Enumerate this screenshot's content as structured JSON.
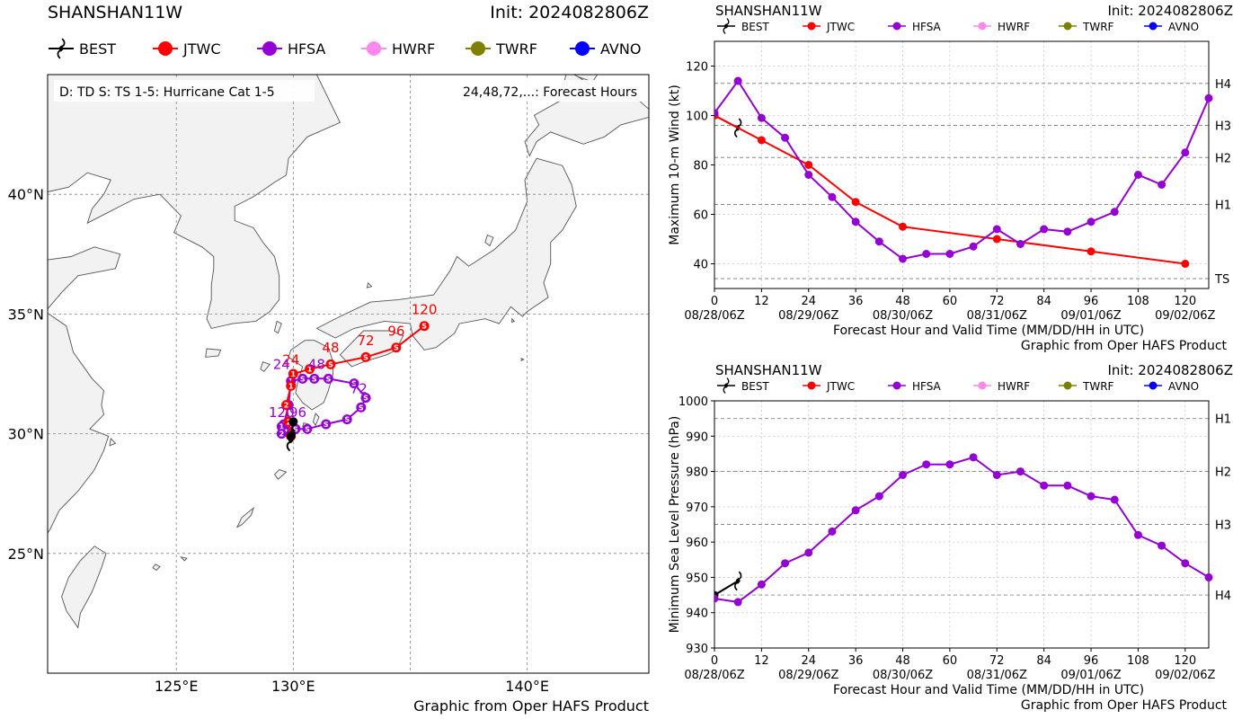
{
  "storm": "SHANSHAN11W",
  "init": "Init: 2024082806Z",
  "credit": "Graphic from Oper HAFS Product",
  "legend": [
    {
      "name": "BEST",
      "color": "#000000",
      "icon": "typhoon-icon"
    },
    {
      "name": "JTWC",
      "color": "#ff0000",
      "icon": "dot-marker"
    },
    {
      "name": "HFSA",
      "color": "#9400d3",
      "icon": "dot-marker"
    },
    {
      "name": "HWRF",
      "color": "#ff88ee",
      "icon": "dot-marker"
    },
    {
      "name": "TWRF",
      "color": "#808000",
      "icon": "dot-marker"
    },
    {
      "name": "AVNO",
      "color": "#0000ff",
      "icon": "dot-marker"
    }
  ],
  "map": {
    "note_left": "D: TD  S: TS  1-5: Hurricane Cat 1-5",
    "note_right": "24,48,72,...: Forecast Hours",
    "lat_labels": [
      "25°N",
      "30°N",
      "35°N",
      "40°N"
    ],
    "lon_labels": [
      "125°E",
      "130°E",
      "140°E"
    ],
    "lat_ticks": [
      25,
      30,
      35,
      40
    ],
    "lon_ticks": [
      125,
      130,
      135,
      140
    ],
    "lat_range": [
      20,
      45
    ],
    "lon_range": [
      119.5,
      145.2
    ],
    "best_track": [
      [
        29.9,
        129.9
      ],
      [
        30.5,
        130.0
      ]
    ],
    "jtwc_track": [
      {
        "lat": 29.9,
        "lon": 129.9,
        "sym": "3"
      },
      {
        "lat": 30.5,
        "lon": 129.8,
        "sym": "2"
      },
      {
        "lat": 31.2,
        "lon": 129.7,
        "sym": "2"
      },
      {
        "lat": 32.0,
        "lon": 129.9,
        "sym": "1"
      },
      {
        "lat": 32.5,
        "lon": 130.0,
        "sym": "1"
      },
      {
        "lat": 32.7,
        "lon": 130.7,
        "sym": "1"
      },
      {
        "lat": 32.9,
        "lon": 131.6,
        "sym": "S"
      },
      {
        "lat": 33.2,
        "lon": 133.1,
        "sym": "S"
      },
      {
        "lat": 33.6,
        "lon": 134.4,
        "sym": "S"
      },
      {
        "lat": 34.5,
        "lon": 135.6,
        "sym": "S"
      }
    ],
    "jtwc_hour_labels": [
      {
        "text": "24",
        "lat": 32.9,
        "lon": 129.9
      },
      {
        "text": "48",
        "lat": 33.4,
        "lon": 131.6
      },
      {
        "text": "72",
        "lat": 33.7,
        "lon": 133.1
      },
      {
        "text": "96",
        "lat": 34.1,
        "lon": 134.4
      },
      {
        "text": "120",
        "lat": 35.0,
        "lon": 135.6
      }
    ],
    "hfsa_track": [
      {
        "lat": 30.0,
        "lon": 129.9,
        "sym": "3"
      },
      {
        "lat": 30.4,
        "lon": 129.6,
        "sym": "3"
      },
      {
        "lat": 31.2,
        "lon": 129.8,
        "sym": "2"
      },
      {
        "lat": 32.2,
        "lon": 129.9,
        "sym": "1"
      },
      {
        "lat": 32.3,
        "lon": 130.4,
        "sym": "S"
      },
      {
        "lat": 32.3,
        "lon": 130.9,
        "sym": "S"
      },
      {
        "lat": 32.3,
        "lon": 131.5,
        "sym": "S"
      },
      {
        "lat": 32.1,
        "lon": 132.6,
        "sym": "S"
      },
      {
        "lat": 31.5,
        "lon": 133.1,
        "sym": "S"
      },
      {
        "lat": 31.1,
        "lon": 132.9,
        "sym": "S"
      },
      {
        "lat": 30.6,
        "lon": 132.3,
        "sym": "S"
      },
      {
        "lat": 30.4,
        "lon": 131.4,
        "sym": "S"
      },
      {
        "lat": 30.2,
        "lon": 130.6,
        "sym": "S"
      },
      {
        "lat": 30.2,
        "lon": 130.1,
        "sym": "S"
      },
      {
        "lat": 30.3,
        "lon": 129.5,
        "sym": "1"
      },
      {
        "lat": 30.0,
        "lon": 129.5,
        "sym": "2"
      }
    ],
    "hfsa_hour_labels": [
      {
        "text": "24",
        "lat": 32.7,
        "lon": 129.5
      },
      {
        "text": "48",
        "lat": 32.7,
        "lon": 131.0
      },
      {
        "text": "72",
        "lat": 31.7,
        "lon": 132.8
      },
      {
        "text": "96",
        "lat": 30.7,
        "lon": 130.2
      },
      {
        "text": "120",
        "lat": 30.7,
        "lon": 129.5
      }
    ]
  },
  "chart_data": [
    {
      "type": "line",
      "title": "SHANSHAN11W",
      "xlabel": "Forecast Hour and Valid Time (MM/DD/HH in UTC)",
      "ylabel": "Maximum 10-m Wind (kt)",
      "xlim": [
        0,
        126
      ],
      "ylim": [
        30,
        130
      ],
      "x_ticks": [
        0,
        12,
        24,
        36,
        48,
        60,
        72,
        84,
        96,
        108,
        120
      ],
      "y_ticks": [
        40,
        60,
        80,
        100,
        120
      ],
      "date_labels": [
        {
          "x": 0,
          "text": "08/28/06Z"
        },
        {
          "x": 24,
          "text": "08/29/06Z"
        },
        {
          "x": 48,
          "text": "08/30/06Z"
        },
        {
          "x": 72,
          "text": "08/31/06Z"
        },
        {
          "x": 96,
          "text": "09/01/06Z"
        },
        {
          "x": 120,
          "text": "09/02/06Z"
        }
      ],
      "categories": [
        {
          "label": "TS",
          "y": 34
        },
        {
          "label": "H1",
          "y": 64
        },
        {
          "label": "H2",
          "y": 83
        },
        {
          "label": "H3",
          "y": 96
        },
        {
          "label": "H4",
          "y": 113
        }
      ],
      "series": [
        {
          "name": "BEST",
          "x": [
            0,
            6
          ],
          "values": [
            100,
            95
          ]
        },
        {
          "name": "JTWC",
          "x": [
            0,
            12,
            24,
            36,
            48,
            72,
            96,
            120
          ],
          "values": [
            100,
            90,
            80,
            65,
            55,
            50,
            45,
            40
          ]
        },
        {
          "name": "HFSA",
          "x": [
            0,
            6,
            12,
            18,
            24,
            30,
            36,
            42,
            48,
            54,
            60,
            66,
            72,
            78,
            84,
            90,
            96,
            102,
            108,
            114,
            120,
            126
          ],
          "values": [
            101,
            114,
            99,
            91,
            76,
            67,
            57,
            49,
            42,
            44,
            44,
            47,
            54,
            48,
            54,
            53,
            57,
            61,
            76,
            72,
            85,
            107
          ]
        }
      ],
      "grid": true
    },
    {
      "type": "line",
      "title": "SHANSHAN11W",
      "xlabel": "Forecast Hour and Valid Time (MM/DD/HH in UTC)",
      "ylabel": "Minimum Sea Level Pressure (hPa)",
      "xlim": [
        0,
        126
      ],
      "ylim": [
        930,
        1000
      ],
      "x_ticks": [
        0,
        12,
        24,
        36,
        48,
        60,
        72,
        84,
        96,
        108,
        120
      ],
      "y_ticks": [
        930,
        940,
        950,
        960,
        970,
        980,
        990,
        1000
      ],
      "date_labels": [
        {
          "x": 0,
          "text": "08/28/06Z"
        },
        {
          "x": 24,
          "text": "08/29/06Z"
        },
        {
          "x": 48,
          "text": "08/30/06Z"
        },
        {
          "x": 72,
          "text": "08/31/06Z"
        },
        {
          "x": 96,
          "text": "09/01/06Z"
        },
        {
          "x": 120,
          "text": "09/02/06Z"
        }
      ],
      "categories": [
        {
          "label": "H1",
          "y": 995
        },
        {
          "label": "H2",
          "y": 980
        },
        {
          "label": "H3",
          "y": 965
        },
        {
          "label": "H4",
          "y": 945
        }
      ],
      "series": [
        {
          "name": "BEST",
          "x": [
            0,
            6
          ],
          "values": [
            945,
            949
          ]
        },
        {
          "name": "HFSA",
          "x": [
            0,
            6,
            12,
            18,
            24,
            30,
            36,
            42,
            48,
            54,
            60,
            66,
            72,
            78,
            84,
            90,
            96,
            102,
            108,
            114,
            120,
            126
          ],
          "values": [
            944,
            943,
            948,
            954,
            957,
            963,
            969,
            973,
            979,
            982,
            982,
            984,
            979,
            980,
            976,
            976,
            973,
            972,
            962,
            959,
            954,
            950
          ]
        }
      ],
      "grid": true
    }
  ]
}
